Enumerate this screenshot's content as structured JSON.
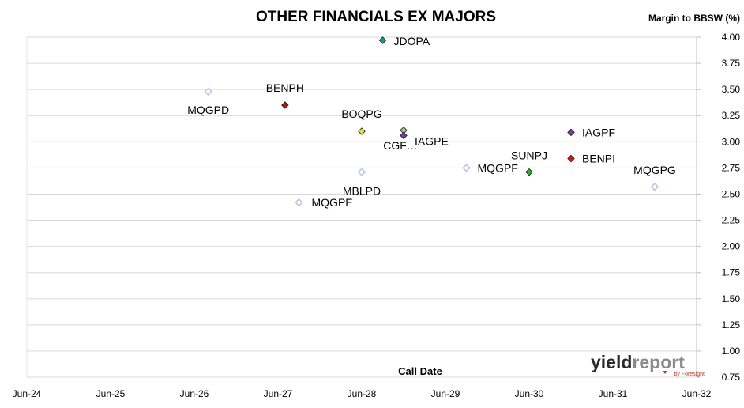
{
  "chart_data": {
    "type": "scatter",
    "title": "OTHER FINANCIALS EX MAJORS",
    "ylabel": "Margin to BBSW (%)",
    "xlabel": "Call Date",
    "ylim": [
      0.75,
      4.0
    ],
    "y_ticks": [
      "4.00",
      "3.75",
      "3.50",
      "3.25",
      "3.00",
      "2.75",
      "2.50",
      "2.25",
      "2.00",
      "1.75",
      "1.50",
      "1.25",
      "1.00",
      "0.75"
    ],
    "x_ticks": [
      "Jun-24",
      "Jun-25",
      "Jun-26",
      "Jun-27",
      "Jun-28",
      "Jun-29",
      "Jun-30",
      "Jun-31",
      "Jun-32"
    ],
    "x_range": [
      "Jun-24",
      "Jun-32"
    ],
    "y_axis_position": "right",
    "grid": "horizontal",
    "points": [
      {
        "label": "JDOPA",
        "x": "Sep-28",
        "y": 3.97,
        "fill": "#1a9a8a",
        "hollow": false
      },
      {
        "label": "MQGPD",
        "x": "Aug-26",
        "y": 3.48,
        "fill": "#b8c8e0",
        "hollow": true
      },
      {
        "label": "BENPH",
        "x": "Jul-27",
        "y": 3.35,
        "fill": "#a01e14",
        "hollow": false
      },
      {
        "label": "BOQPG",
        "x": "Jun-28",
        "y": 3.1,
        "fill": "#e6e03a",
        "hollow": false
      },
      {
        "label": "CGF…",
        "x": "Dec-28",
        "y": 3.11,
        "fill": "#9ed08a",
        "hollow": false
      },
      {
        "label": "IAGPE",
        "x": "Dec-28",
        "y": 3.06,
        "fill": "#7a3aa0",
        "hollow": false
      },
      {
        "label": "IAGPF",
        "x": "Dec-30",
        "y": 3.09,
        "fill": "#7a3aa0",
        "hollow": false
      },
      {
        "label": "BENPI",
        "x": "Dec-30",
        "y": 2.84,
        "fill": "#d41414",
        "hollow": false
      },
      {
        "label": "SUNPJ",
        "x": "Jun-30",
        "y": 2.71,
        "fill": "#28b428",
        "hollow": false
      },
      {
        "label": "MQGPF",
        "x": "Sep-29",
        "y": 2.75,
        "fill": "#b8c8e0",
        "hollow": true
      },
      {
        "label": "MBLPD",
        "x": "Jun-28",
        "y": 2.71,
        "fill": "#b8c8e0",
        "hollow": true
      },
      {
        "label": "MQGPE",
        "x": "Sep-27",
        "y": 2.42,
        "fill": "#b8c8e0",
        "hollow": true
      },
      {
        "label": "MQGPG",
        "x": "Dec-31",
        "y": 2.57,
        "fill": "#b8c8e0",
        "hollow": true
      }
    ]
  },
  "logo": {
    "word_a": "yield",
    "word_b": "report",
    "byline": "by Foresight",
    "color_a": "#2a2a2a",
    "color_b": "#8a8a8a",
    "color_byline": "#c0392b"
  },
  "colors": {
    "gridline": "#d9d9d9",
    "axis": "#bfbfbf"
  }
}
